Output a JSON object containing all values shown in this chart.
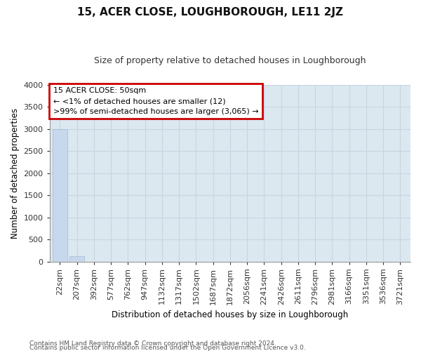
{
  "title": "15, ACER CLOSE, LOUGHBOROUGH, LE11 2JZ",
  "subtitle": "Size of property relative to detached houses in Loughborough",
  "xlabel": "Distribution of detached houses by size in Loughborough",
  "ylabel": "Number of detached properties",
  "footnote1": "Contains HM Land Registry data © Crown copyright and database right 2024.",
  "footnote2": "Contains public sector information licensed under the Open Government Licence v3.0.",
  "annotation_title": "15 ACER CLOSE: 50sqm",
  "annotation_line1": "← <1% of detached houses are smaller (12)",
  "annotation_line2": ">99% of semi-detached houses are larger (3,065) →",
  "bar_color": "#c8d8ec",
  "bar_edge_color": "#a0b8d0",
  "annotation_box_color": "#cc0000",
  "grid_color": "#c8d4e0",
  "plot_bg_color": "#dce8f0",
  "fig_bg_color": "#ffffff",
  "categories": [
    "22sqm",
    "207sqm",
    "392sqm",
    "577sqm",
    "762sqm",
    "947sqm",
    "1132sqm",
    "1317sqm",
    "1502sqm",
    "1687sqm",
    "1872sqm",
    "2056sqm",
    "2241sqm",
    "2426sqm",
    "2611sqm",
    "2796sqm",
    "2981sqm",
    "3166sqm",
    "3351sqm",
    "3536sqm",
    "3721sqm"
  ],
  "values": [
    3000,
    120,
    0,
    0,
    0,
    0,
    0,
    0,
    0,
    0,
    0,
    0,
    0,
    0,
    0,
    0,
    0,
    0,
    0,
    0,
    0
  ],
  "ylim": [
    0,
    4000
  ],
  "yticks": [
    0,
    500,
    1000,
    1500,
    2000,
    2500,
    3000,
    3500,
    4000
  ],
  "title_fontsize": 11,
  "subtitle_fontsize": 9,
  "axis_label_fontsize": 8.5,
  "tick_fontsize": 8,
  "annotation_fontsize": 8,
  "footnote_fontsize": 6.5
}
